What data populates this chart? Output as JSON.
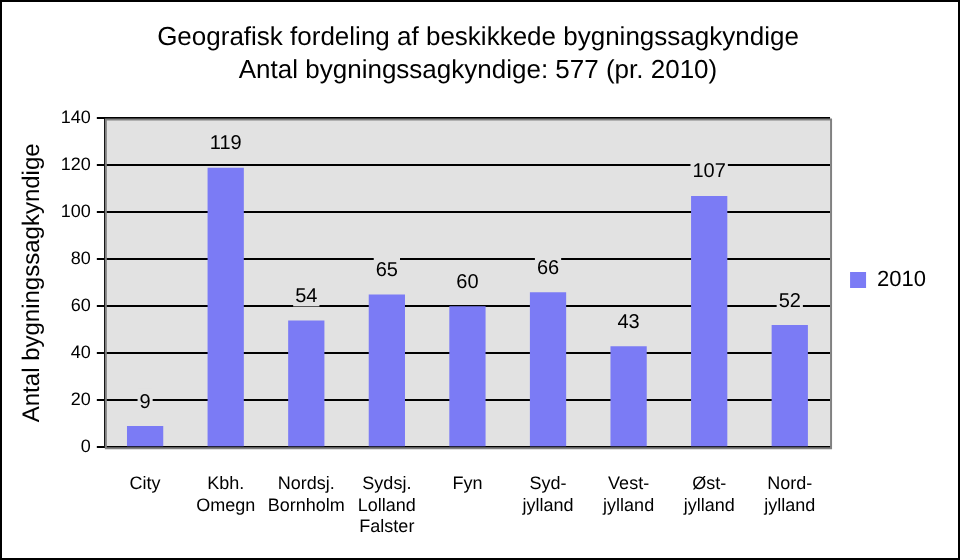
{
  "chart_data": {
    "type": "bar",
    "title": "Geografisk fordeling af beskikkede bygningssagkyndige",
    "subtitle": "Antal bygningssagkyndige: 577 (pr. 2010)",
    "ylabel": "Antal bygningssagkyndige",
    "categories": [
      "City",
      "Kbh.\nOmegn",
      "Nordsj.\nBornholm",
      "Sydsj.\nLolland\nFalster",
      "Fyn",
      "Syd-\njylland",
      "Vest-\njylland",
      "Øst-\njylland",
      "Nord-\njylland"
    ],
    "series": [
      {
        "name": "2010",
        "color": "#7b7bf5",
        "values": [
          9,
          119,
          54,
          65,
          60,
          66,
          43,
          107,
          52
        ]
      }
    ],
    "ylim": [
      0,
      140
    ],
    "yticks": [
      0,
      20,
      40,
      60,
      80,
      100,
      120,
      140
    ],
    "grid": "y",
    "legend": "right",
    "data_labels": true
  }
}
